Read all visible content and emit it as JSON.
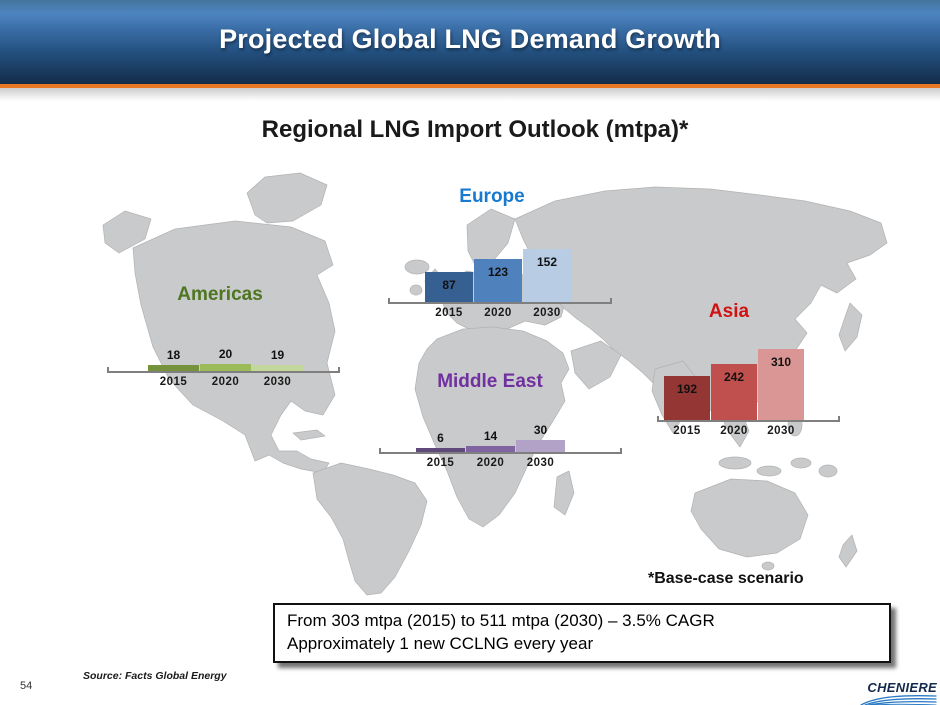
{
  "header": {
    "title": "Projected Global LNG Demand Growth"
  },
  "subtitle": "Regional LNG Import Outlook (mtpa)*",
  "note": "*Base-case scenario",
  "callout": {
    "line1": "From 303 mtpa (2015) to 511 mtpa (2030) – 3.5% CAGR",
    "line2": "Approximately 1 new CCLNG every year"
  },
  "source": "Source: Facts Global Energy",
  "page_number": "54",
  "logo": {
    "text": "CHENIERE"
  },
  "colors": {
    "header_orange": "#e87722",
    "axis_gray": "#7f7f7f",
    "map_gray": "#c9cacb",
    "logo_wave_blue": "#2b7bc4"
  },
  "chart_data": [
    {
      "type": "bar",
      "region": "Americas",
      "region_label_color": "#4e7520",
      "categories": [
        "2015",
        "2020",
        "2030"
      ],
      "values": [
        18,
        20,
        19
      ],
      "bar_colors": [
        "#76923c",
        "#9bbb59",
        "#c3d69b"
      ],
      "value_label_position": "above"
    },
    {
      "type": "bar",
      "region": "Europe",
      "region_label_color": "#1779d0",
      "categories": [
        "2015",
        "2020",
        "2030"
      ],
      "values": [
        87,
        123,
        152
      ],
      "bar_colors": [
        "#376092",
        "#4f81bd",
        "#b8cce4"
      ],
      "value_label_position": "inside"
    },
    {
      "type": "bar",
      "region": "Middle East",
      "region_label_color": "#7030a0",
      "categories": [
        "2015",
        "2020",
        "2030"
      ],
      "values": [
        6,
        14,
        30
      ],
      "bar_colors": [
        "#5f4a7b",
        "#8064a2",
        "#b3a2c7"
      ],
      "value_label_position": "above"
    },
    {
      "type": "bar",
      "region": "Asia",
      "region_label_color": "#d01212",
      "categories": [
        "2015",
        "2020",
        "2030"
      ],
      "values": [
        192,
        242,
        310
      ],
      "bar_colors": [
        "#943634",
        "#c0504d",
        "#d99694"
      ],
      "value_label_position": "inside"
    }
  ]
}
